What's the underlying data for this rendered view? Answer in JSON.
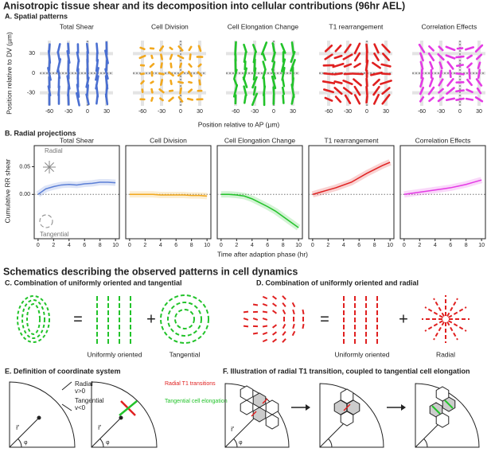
{
  "title": "Anisotropic tissue shear and its decomposition into cellular contributions (96hr AEL)",
  "panel_a": {
    "label": "A. Spatial patterns",
    "xlabel": "Position relative to AP (µm)",
    "ylabel": "Position relative to DV (µm)",
    "panels": [
      "Total Shear",
      "Cell Division",
      "Cell Elongation Change",
      "T1 rearrangement",
      "Correlation Effects"
    ],
    "colors": [
      "#4a6fd1",
      "#f2a81d",
      "#22c32a",
      "#e02020",
      "#e43ae4"
    ],
    "xlim": [
      -75,
      40
    ],
    "ylim": [
      -50,
      50
    ],
    "xticks": [
      -60,
      -30,
      0,
      30
    ],
    "yticks": [
      30,
      0,
      -30
    ]
  },
  "panel_b": {
    "label": "B. Radial projections",
    "ylabel": "Cumulative RR shear",
    "xlabel": "Time after adaption phase (hr)",
    "radial": "Radial",
    "tangential": "Tangential"
  },
  "chart_data": [
    {
      "type": "line",
      "title": "Total Shear",
      "color": "#5b7fd6",
      "x": [
        0,
        1,
        2,
        3,
        4,
        5,
        6,
        7,
        8,
        9,
        10
      ],
      "values": [
        0,
        0.01,
        0.014,
        0.017,
        0.018,
        0.017,
        0.019,
        0.02,
        0.022,
        0.022,
        0.021
      ],
      "xlim": [
        -0.5,
        10.5
      ],
      "ylim": [
        -0.08,
        0.088
      ],
      "xticks": [
        0,
        2,
        4,
        6,
        8,
        10
      ],
      "yticks": [
        {
          "value": 0,
          "label": "0.00"
        },
        {
          "value": 0.05,
          "label": "0.05"
        }
      ]
    },
    {
      "type": "line",
      "title": "Cell Division",
      "color": "#f2a81d",
      "x": [
        0,
        1,
        2,
        3,
        4,
        5,
        6,
        7,
        8,
        9,
        10
      ],
      "values": [
        0,
        0,
        0,
        0,
        -0.001,
        -0.001,
        -0.001,
        -0.001,
        -0.002,
        -0.002,
        -0.003
      ],
      "xlim": [
        -0.5,
        10.5
      ],
      "ylim": [
        -0.08,
        0.088
      ],
      "xticks": [
        0,
        2,
        4,
        6,
        8,
        10
      ]
    },
    {
      "type": "line",
      "title": "Cell Elongation Change",
      "color": "#22c32a",
      "x": [
        0,
        1,
        2,
        3,
        4,
        5,
        6,
        7,
        8,
        9,
        10
      ],
      "values": [
        0,
        0,
        -0.001,
        -0.003,
        -0.008,
        -0.015,
        -0.022,
        -0.03,
        -0.04,
        -0.05,
        -0.06
      ],
      "xlim": [
        -0.5,
        10.5
      ],
      "ylim": [
        -0.08,
        0.088
      ],
      "xticks": [
        0,
        2,
        4,
        6,
        8,
        10
      ]
    },
    {
      "type": "line",
      "title": "T1 rearrangement",
      "color": "#e02020",
      "x": [
        0,
        1,
        2,
        3,
        4,
        5,
        6,
        7,
        8,
        9,
        10
      ],
      "values": [
        0,
        0.004,
        0.008,
        0.012,
        0.017,
        0.022,
        0.03,
        0.038,
        0.045,
        0.052,
        0.058
      ],
      "xlim": [
        -0.5,
        10.5
      ],
      "ylim": [
        -0.08,
        0.088
      ],
      "xticks": [
        0,
        2,
        4,
        6,
        8,
        10
      ]
    },
    {
      "type": "line",
      "title": "Correlation Effects",
      "color": "#e43ae4",
      "x": [
        0,
        1,
        2,
        3,
        4,
        5,
        6,
        7,
        8,
        9,
        10
      ],
      "values": [
        0,
        0.002,
        0.004,
        0.006,
        0.008,
        0.01,
        0.012,
        0.015,
        0.018,
        0.022,
        0.026
      ],
      "xlim": [
        -0.5,
        10.5
      ],
      "ylim": [
        -0.08,
        0.088
      ],
      "xticks": [
        0,
        2,
        4,
        6,
        8,
        10
      ]
    }
  ],
  "schematics": {
    "heading": "Schematics describing the observed patterns in cell dynamics",
    "c": {
      "label": "C. Combination of uniformly oriented and tangential",
      "equals": "=",
      "plus": "+",
      "captions": [
        "Uniformly oriented",
        "Tangential"
      ]
    },
    "d": {
      "label": "D. Combination of uniformly oriented and radial",
      "equals": "=",
      "plus": "+",
      "captions": [
        "Uniformly oriented",
        "Radial"
      ]
    },
    "e": {
      "label": "E. Definition of coordinate system",
      "radial": "Radial",
      "radial_sign": "v>0",
      "tangential": "Tangential",
      "tangential_sign": "v<0",
      "vector": "r⃗",
      "angle": "φ",
      "t1": "Radial T1 transitions",
      "elong": "Tangential cell elongation"
    },
    "f": {
      "label": "F. Illustration of radial T1 transition, coupled to tangential cell elongation",
      "vector": "r⃗",
      "angle": "φ"
    }
  }
}
